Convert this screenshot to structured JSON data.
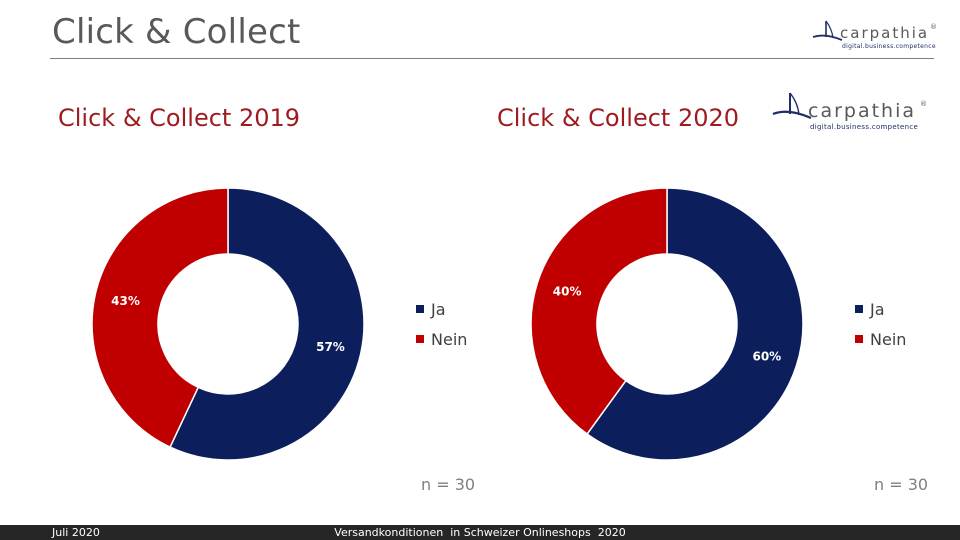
{
  "slide": {
    "title": "Click & Collect"
  },
  "logo": {
    "wordmark": "carpathia",
    "tagline": "digital.business.competence",
    "reg": "®"
  },
  "colors": {
    "ja": "#0c1f5c",
    "nein": "#c00000",
    "title_red": "#9e1b1f",
    "logo_navy": "#1f2f66"
  },
  "chart_data": [
    {
      "type": "pie",
      "title": "Click & Collect 2019",
      "categories": [
        "Ja",
        "Nein"
      ],
      "values": [
        57,
        43
      ],
      "labels": [
        "57%",
        "43%"
      ],
      "legend_position": "right",
      "note": "n = 30"
    },
    {
      "type": "pie",
      "title": "Click & Collect 2020",
      "categories": [
        "Ja",
        "Nein"
      ],
      "values": [
        60,
        40
      ],
      "labels": [
        "60%",
        "40%"
      ],
      "legend_position": "right",
      "note": "n = 30"
    }
  ],
  "footer": {
    "date": "Juli 2020",
    "center": "Versandkonditionen  in Schweizer Onlineshops  2020"
  }
}
